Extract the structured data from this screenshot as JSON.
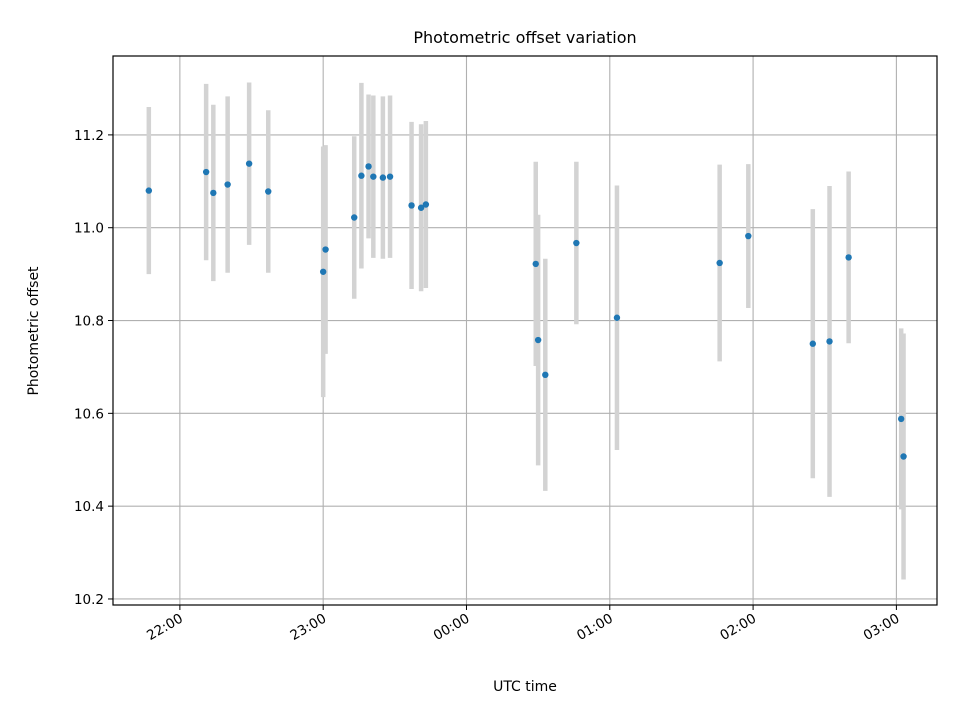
{
  "chart_data": {
    "type": "scatter",
    "title": "Photometric offset variation",
    "xlabel": "UTC time",
    "ylabel": "Photometric offset",
    "x_axis_type": "time",
    "x_ticks": [
      "22:00",
      "23:00",
      "00:00",
      "01:00",
      "02:00",
      "03:00"
    ],
    "y_ticks": [
      "10.2",
      "10.4",
      "10.6",
      "10.8",
      "11.0",
      "11.2"
    ],
    "xlim": [
      "21:32",
      "03:17"
    ],
    "ylim": [
      10.187,
      11.37
    ],
    "grid": true,
    "marker_color": "#1f77b4",
    "errorbar_color": "#d3d3d3",
    "points": [
      {
        "t": "21:47",
        "y": 11.08,
        "err": 0.18
      },
      {
        "t": "22:11",
        "y": 11.12,
        "err": 0.19
      },
      {
        "t": "22:14",
        "y": 11.075,
        "err": 0.19
      },
      {
        "t": "22:20",
        "y": 11.093,
        "err": 0.19
      },
      {
        "t": "22:29",
        "y": 11.138,
        "err": 0.175
      },
      {
        "t": "22:37",
        "y": 11.078,
        "err": 0.175
      },
      {
        "t": "23:00",
        "y": 10.905,
        "err": 0.27
      },
      {
        "t": "23:01",
        "y": 10.953,
        "err": 0.225
      },
      {
        "t": "23:13",
        "y": 11.022,
        "err": 0.175
      },
      {
        "t": "23:16",
        "y": 11.112,
        "err": 0.2
      },
      {
        "t": "23:19",
        "y": 11.132,
        "err": 0.155
      },
      {
        "t": "23:21",
        "y": 11.11,
        "err": 0.175
      },
      {
        "t": "23:25",
        "y": 11.108,
        "err": 0.175
      },
      {
        "t": "23:28",
        "y": 11.11,
        "err": 0.175
      },
      {
        "t": "23:37",
        "y": 11.048,
        "err": 0.18
      },
      {
        "t": "23:41",
        "y": 11.043,
        "err": 0.18
      },
      {
        "t": "23:43",
        "y": 11.05,
        "err": 0.18
      },
      {
        "t": "00:29",
        "y": 10.922,
        "err": 0.22
      },
      {
        "t": "00:30",
        "y": 10.758,
        "err": 0.27
      },
      {
        "t": "00:33",
        "y": 10.683,
        "err": 0.25
      },
      {
        "t": "00:46",
        "y": 10.967,
        "err": 0.175
      },
      {
        "t": "01:03",
        "y": 10.806,
        "err": 0.285
      },
      {
        "t": "01:46",
        "y": 10.924,
        "err": 0.212
      },
      {
        "t": "01:58",
        "y": 10.982,
        "err": 0.155
      },
      {
        "t": "02:25",
        "y": 10.75,
        "err": 0.29
      },
      {
        "t": "02:32",
        "y": 10.755,
        "err": 0.335
      },
      {
        "t": "02:40",
        "y": 10.936,
        "err": 0.185
      },
      {
        "t": "03:02",
        "y": 10.588,
        "err": 0.195
      },
      {
        "t": "03:03",
        "y": 10.507,
        "err": 0.265
      }
    ]
  }
}
